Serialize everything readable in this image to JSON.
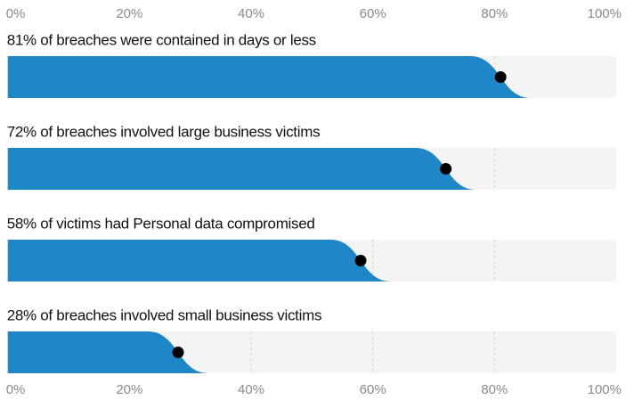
{
  "chart_data": {
    "type": "sigmoid-bar",
    "categories": [
      "81% of breaches were contained in days or less",
      "72% of breaches involved large business victims",
      "58% of victims had Personal data compromised",
      "28% of breaches involved small business victims"
    ],
    "values": [
      81,
      72,
      58,
      28
    ],
    "color": "#1f87c8",
    "xlim": [
      0,
      100
    ],
    "xticks": [
      {
        "value": 0,
        "label": "0%"
      },
      {
        "value": 20,
        "label": "20%"
      },
      {
        "value": 40,
        "label": "40%"
      },
      {
        "value": 60,
        "label": "60%"
      },
      {
        "value": 80,
        "label": "80%"
      },
      {
        "value": 100,
        "label": "100%"
      }
    ],
    "grid": true
  }
}
